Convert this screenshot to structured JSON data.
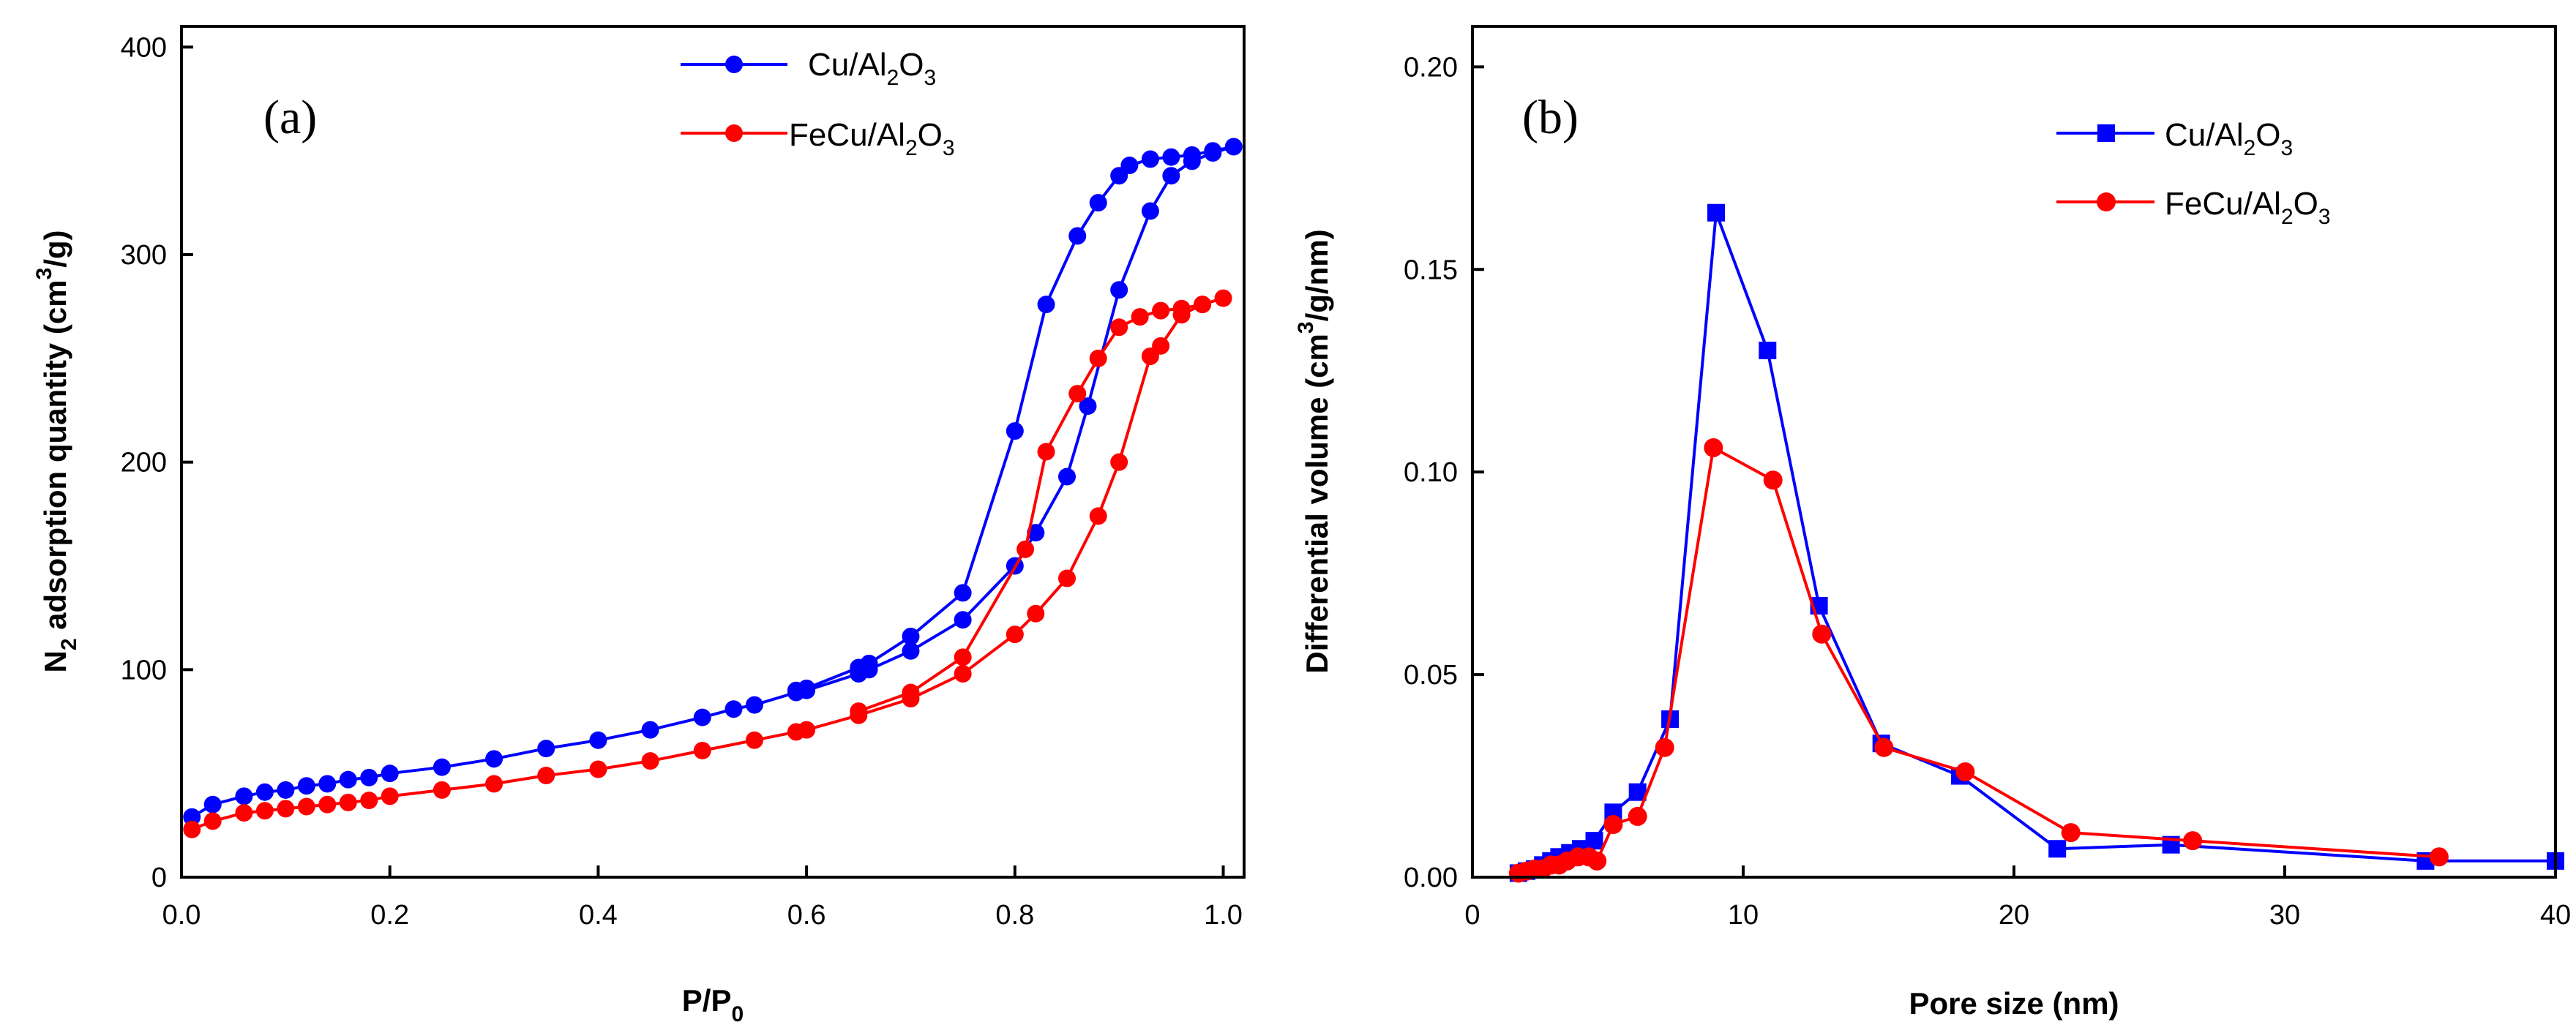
{
  "chart_data": [
    {
      "type": "line",
      "panel_label": "(a)",
      "xlabel": {
        "main": "P/P",
        "sub": "0"
      },
      "ylabel": {
        "pre": "N",
        "sub1": "2",
        "mid": " adsorption quantity (cm",
        "sup": "3",
        "post": "/g)"
      },
      "xlim": [
        0.0,
        1.02
      ],
      "ylim": [
        0,
        410
      ],
      "xticks": [
        0.0,
        0.2,
        0.4,
        0.6,
        0.8,
        1.0
      ],
      "xtick_labels": [
        "0.0",
        "0.2",
        "0.4",
        "0.6",
        "0.8",
        "1.0"
      ],
      "yticks": [
        0,
        100,
        200,
        300,
        400
      ],
      "ytick_labels": [
        "0",
        "100",
        "200",
        "300",
        "400"
      ],
      "legend_position": "top-right",
      "series": [
        {
          "name": "Cu/Al2O3",
          "label": {
            "a": "Cu/Al",
            "b": "2",
            "c": "O",
            "d": "3"
          },
          "color": "#0000ff",
          "marker": "circle",
          "x": [
            0.01,
            0.03,
            0.06,
            0.08,
            0.1,
            0.12,
            0.14,
            0.16,
            0.18,
            0.2,
            0.25,
            0.3,
            0.35,
            0.4,
            0.45,
            0.5,
            0.53,
            0.55,
            0.59,
            0.6,
            0.65,
            0.66,
            0.7,
            0.75,
            0.8,
            0.82,
            0.85,
            0.87,
            0.9,
            0.93,
            0.95,
            0.97,
            0.99,
            1.01,
            0.99,
            0.97,
            0.95,
            0.93,
            0.91,
            0.9,
            0.88,
            0.86,
            0.83,
            0.8,
            0.75,
            0.7,
            0.66,
            0.65,
            0.6,
            0.59
          ],
          "y": [
            29,
            35,
            39,
            41,
            42,
            44,
            45,
            47,
            48,
            50,
            53,
            57,
            62,
            66,
            71,
            77,
            81,
            83,
            89,
            90,
            98,
            100,
            109,
            124,
            150,
            166,
            193,
            227,
            283,
            321,
            338,
            345,
            349,
            352,
            350,
            348,
            347,
            346,
            343,
            338,
            325,
            309,
            276,
            215,
            137,
            116,
            103,
            101,
            91,
            90
          ]
        },
        {
          "name": "FeCu/Al2O3",
          "label": {
            "a": "FeCu/Al",
            "b": "2",
            "c": "O",
            "d": "3"
          },
          "color": "#ff0000",
          "marker": "circle",
          "x": [
            0.01,
            0.03,
            0.06,
            0.08,
            0.1,
            0.12,
            0.14,
            0.16,
            0.18,
            0.2,
            0.25,
            0.3,
            0.35,
            0.4,
            0.45,
            0.5,
            0.55,
            0.59,
            0.6,
            0.65,
            0.7,
            0.75,
            0.8,
            0.82,
            0.85,
            0.88,
            0.9,
            0.93,
            0.94,
            0.96,
            0.98,
            1.0,
            0.98,
            0.96,
            0.94,
            0.92,
            0.9,
            0.88,
            0.86,
            0.83,
            0.81,
            0.75,
            0.7,
            0.65
          ],
          "y": [
            23,
            27,
            31,
            32,
            33,
            34,
            35,
            36,
            37,
            39,
            42,
            45,
            49,
            52,
            56,
            61,
            66,
            70,
            71,
            78,
            86,
            98,
            117,
            127,
            144,
            174,
            200,
            251,
            256,
            271,
            276,
            279,
            276,
            274,
            273,
            270,
            265,
            250,
            233,
            205,
            158,
            106,
            89,
            80
          ]
        }
      ]
    },
    {
      "type": "line",
      "panel_label": "(b)",
      "xlabel": {
        "main": "Pore size (nm)"
      },
      "ylabel": {
        "pre": "Differential volume (cm",
        "sup": "3",
        "post": "/g/nm)"
      },
      "xlim": [
        0,
        40
      ],
      "ylim": [
        0,
        0.21
      ],
      "xticks": [
        0,
        10,
        20,
        30,
        40
      ],
      "xtick_labels": [
        "0",
        "10",
        "20",
        "30",
        "40"
      ],
      "yticks": [
        0.0,
        0.05,
        0.1,
        0.15,
        0.2
      ],
      "ytick_labels": [
        "0.00",
        "0.05",
        "0.10",
        "0.15",
        "0.20"
      ],
      "legend_position": "top-right",
      "series": [
        {
          "name": "Cu/Al2O3",
          "label": {
            "a": "Cu/Al",
            "b": "2",
            "c": "O",
            "d": "3"
          },
          "color": "#0000ff",
          "marker": "square",
          "x": [
            1.7,
            2.0,
            2.3,
            2.6,
            2.9,
            3.2,
            3.6,
            4.0,
            4.5,
            5.2,
            6.1,
            7.3,
            9.0,
            10.9,
            12.8,
            15.1,
            18.0,
            21.6,
            25.8,
            35.2,
            40.0
          ],
          "y": [
            0.001,
            0.0015,
            0.002,
            0.003,
            0.004,
            0.005,
            0.006,
            0.007,
            0.009,
            0.016,
            0.021,
            0.039,
            0.164,
            0.13,
            0.067,
            0.033,
            0.025,
            0.007,
            0.008,
            0.004,
            0.004
          ]
        },
        {
          "name": "FeCu/Al2O3",
          "label": {
            "a": "FeCu/Al",
            "b": "2",
            "c": "O",
            "d": "3"
          },
          "color": "#ff0000",
          "marker": "circle",
          "x": [
            1.7,
            2.0,
            2.3,
            2.6,
            2.9,
            3.2,
            3.5,
            3.9,
            4.3,
            4.6,
            5.2,
            6.1,
            7.1,
            8.9,
            11.1,
            12.9,
            15.2,
            18.2,
            22.1,
            26.6,
            35.7
          ],
          "y": [
            0.001,
            0.0015,
            0.002,
            0.002,
            0.003,
            0.003,
            0.004,
            0.005,
            0.005,
            0.004,
            0.013,
            0.015,
            0.032,
            0.106,
            0.098,
            0.06,
            0.032,
            0.026,
            0.011,
            0.009,
            0.005
          ]
        }
      ]
    }
  ]
}
